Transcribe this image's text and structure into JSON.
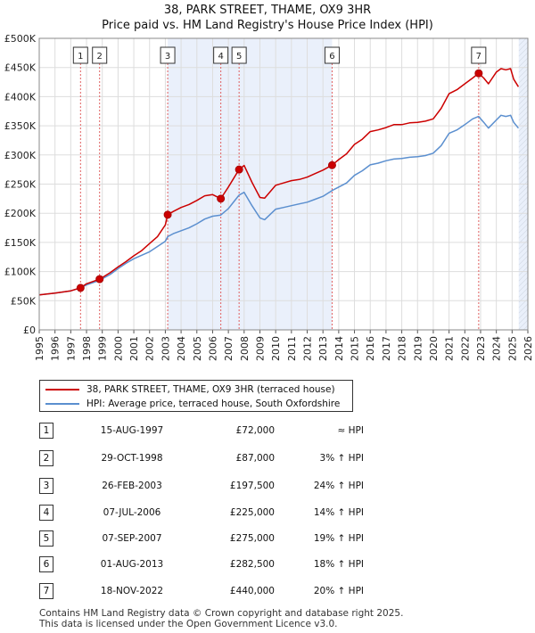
{
  "title": "38, PARK STREET, THAME, OX9 3HR",
  "subtitle": "Price paid vs. HM Land Registry's House Price Index (HPI)",
  "chart_data": {
    "type": "line",
    "title": "38, PARK STREET, THAME, OX9 3HR",
    "subtitle": "Price paid vs. HM Land Registry's House Price Index (HPI)",
    "xlim": [
      1995,
      2026
    ],
    "ylim": [
      0,
      500000
    ],
    "x_ticks": [
      "1995",
      "1996",
      "1997",
      "1998",
      "1999",
      "2000",
      "2001",
      "2002",
      "2003",
      "2004",
      "2005",
      "2006",
      "2007",
      "2008",
      "2009",
      "2010",
      "2011",
      "2012",
      "2013",
      "2014",
      "2015",
      "2016",
      "2017",
      "2018",
      "2019",
      "2020",
      "2021",
      "2022",
      "2023",
      "2024",
      "2025",
      "2026"
    ],
    "y_ticks": [
      {
        "value": 0,
        "label": "£0"
      },
      {
        "value": 50000,
        "label": "£50K"
      },
      {
        "value": 100000,
        "label": "£100K"
      },
      {
        "value": 150000,
        "label": "£150K"
      },
      {
        "value": 200000,
        "label": "£200K"
      },
      {
        "value": 250000,
        "label": "£250K"
      },
      {
        "value": 300000,
        "label": "£300K"
      },
      {
        "value": 350000,
        "label": "£350K"
      },
      {
        "value": 400000,
        "label": "£400K"
      },
      {
        "value": 450000,
        "label": "£450K"
      },
      {
        "value": 500000,
        "label": "£500K"
      }
    ],
    "grid": true,
    "shaded_ranges": [
      [
        2003.15,
        2013.58
      ],
      [
        2025.42,
        2026
      ]
    ],
    "series": [
      {
        "name": "38, PARK STREET, THAME, OX9 3HR (terraced house)",
        "color": "#cc0000",
        "x": [
          1995.0,
          1996.0,
          1997.0,
          1997.62,
          1998.0,
          1998.83,
          1999.5,
          2000.0,
          2000.5,
          2001.0,
          2001.5,
          2002.0,
          2002.5,
          2003.0,
          2003.15,
          2003.5,
          2004.0,
          2004.5,
          2005.0,
          2005.5,
          2006.0,
          2006.52,
          2007.0,
          2007.68,
          2008.0,
          2008.5,
          2009.0,
          2009.3,
          2010.0,
          2010.5,
          2011.0,
          2011.5,
          2012.0,
          2012.5,
          2013.0,
          2013.58,
          2014.0,
          2014.5,
          2015.0,
          2015.5,
          2016.0,
          2016.5,
          2017.0,
          2017.5,
          2018.0,
          2018.5,
          2019.0,
          2019.5,
          2020.0,
          2020.5,
          2021.0,
          2021.5,
          2022.0,
          2022.5,
          2022.88,
          2023.2,
          2023.5,
          2024.0,
          2024.3,
          2024.6,
          2024.9,
          2025.1,
          2025.4
        ],
        "y": [
          60000,
          63000,
          67000,
          72000,
          79000,
          87000,
          98000,
          108000,
          117000,
          127000,
          136000,
          148000,
          160000,
          180000,
          197500,
          203000,
          210000,
          215000,
          222000,
          230000,
          232000,
          225000,
          245000,
          275000,
          282000,
          253000,
          227000,
          226000,
          248000,
          252000,
          256000,
          258000,
          262000,
          268000,
          274000,
          282500,
          292000,
          302000,
          318000,
          327000,
          340000,
          343000,
          347000,
          352000,
          352000,
          355000,
          356000,
          358000,
          362000,
          380000,
          405000,
          412000,
          422000,
          432000,
          440000,
          432000,
          422000,
          442000,
          448000,
          446000,
          448000,
          430000,
          417000
        ]
      },
      {
        "name": "HPI: Average price, terraced house, South Oxfordshire",
        "color": "#5b8fcf",
        "x": [
          1995.0,
          1996.0,
          1997.0,
          1997.62,
          1998.0,
          1998.83,
          1999.5,
          2000.0,
          2000.5,
          2001.0,
          2001.5,
          2002.0,
          2002.5,
          2003.0,
          2003.15,
          2003.5,
          2004.0,
          2004.5,
          2005.0,
          2005.5,
          2006.0,
          2006.52,
          2007.0,
          2007.68,
          2008.0,
          2008.5,
          2009.0,
          2009.3,
          2010.0,
          2010.5,
          2011.0,
          2011.5,
          2012.0,
          2012.5,
          2013.0,
          2013.58,
          2014.0,
          2014.5,
          2015.0,
          2015.5,
          2016.0,
          2016.5,
          2017.0,
          2017.5,
          2018.0,
          2018.5,
          2019.0,
          2019.5,
          2020.0,
          2020.5,
          2021.0,
          2021.5,
          2022.0,
          2022.5,
          2022.88,
          2023.2,
          2023.5,
          2024.0,
          2024.3,
          2024.6,
          2024.9,
          2025.1,
          2025.4
        ],
        "y": [
          60000,
          63000,
          67000,
          72000,
          77000,
          85000,
          95000,
          105000,
          114000,
          122000,
          128000,
          134000,
          143000,
          152000,
          160000,
          165000,
          170000,
          175000,
          182000,
          190000,
          195000,
          197000,
          208000,
          231000,
          236000,
          213000,
          192000,
          189000,
          207000,
          210000,
          213000,
          216000,
          219000,
          224000,
          229000,
          239000,
          245000,
          252000,
          265000,
          273000,
          283000,
          286000,
          290000,
          293000,
          294000,
          296000,
          297000,
          299000,
          303000,
          316000,
          337000,
          343000,
          352000,
          362000,
          366000,
          356000,
          346000,
          360000,
          368000,
          366000,
          368000,
          356000,
          346000
        ]
      }
    ],
    "transactions": [
      {
        "label": "1",
        "x": 1997.62,
        "y": 72000
      },
      {
        "label": "2",
        "x": 1998.83,
        "y": 87000
      },
      {
        "label": "3",
        "x": 2003.15,
        "y": 197500
      },
      {
        "label": "4",
        "x": 2006.52,
        "y": 225000
      },
      {
        "label": "5",
        "x": 2007.68,
        "y": 275000
      },
      {
        "label": "6",
        "x": 2013.58,
        "y": 282500
      },
      {
        "label": "7",
        "x": 2022.88,
        "y": 440000
      }
    ]
  },
  "legend": {
    "property_label": "38, PARK STREET, THAME, OX9 3HR (terraced house)",
    "hpi_label": "HPI: Average price, terraced house, South Oxfordshire",
    "property_color": "#cc0000",
    "hpi_color": "#5b8fcf"
  },
  "transactions_table": [
    {
      "num": "1",
      "date": "15-AUG-1997",
      "price": "£72,000",
      "hpi": "≈ HPI"
    },
    {
      "num": "2",
      "date": "29-OCT-1998",
      "price": "£87,000",
      "hpi": "3% ↑ HPI"
    },
    {
      "num": "3",
      "date": "26-FEB-2003",
      "price": "£197,500",
      "hpi": "24% ↑ HPI"
    },
    {
      "num": "4",
      "date": "07-JUL-2006",
      "price": "£225,000",
      "hpi": "14% ↑ HPI"
    },
    {
      "num": "5",
      "date": "07-SEP-2007",
      "price": "£275,000",
      "hpi": "19% ↑ HPI"
    },
    {
      "num": "6",
      "date": "01-AUG-2013",
      "price": "£282,500",
      "hpi": "18% ↑ HPI"
    },
    {
      "num": "7",
      "date": "18-NOV-2022",
      "price": "£440,000",
      "hpi": "20% ↑ HPI"
    }
  ],
  "footer": {
    "line1": "Contains HM Land Registry data © Crown copyright and database right 2025.",
    "line2": "This data is licensed under the Open Government Licence v3.0."
  }
}
